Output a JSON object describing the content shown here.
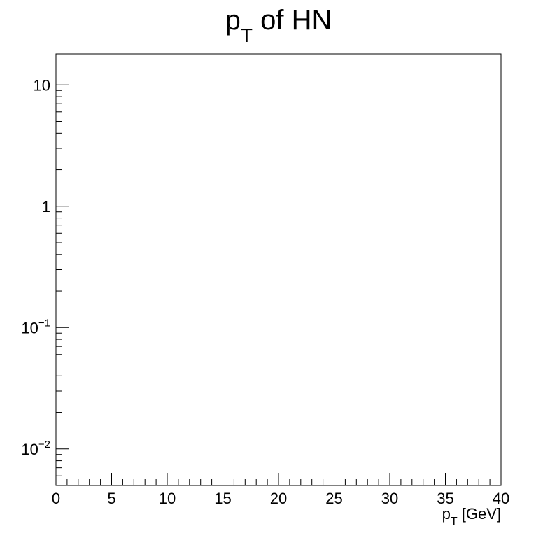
{
  "chart_data": {
    "type": "bar",
    "title": {
      "main": "p",
      "sub": "T",
      "rest": " of HN"
    },
    "xlabel": {
      "main": "p",
      "sub": "T",
      "rest": " [GeV]"
    },
    "ylabel": "",
    "xlim": [
      0,
      40
    ],
    "ylim": [
      0.005,
      18
    ],
    "yscale": "log",
    "x_ticks": [
      "0",
      "5",
      "10",
      "15",
      "20",
      "25",
      "30",
      "35",
      "40"
    ],
    "x_tick_values": [
      0,
      5,
      10,
      15,
      20,
      25,
      30,
      35,
      40
    ],
    "y_ticks": [
      {
        "value": 10,
        "base": "10",
        "exp": ""
      },
      {
        "value": 1,
        "base": "1",
        "exp": ""
      },
      {
        "value": 0.1,
        "base": "10",
        "exp": "−1"
      },
      {
        "value": 0.01,
        "base": "10",
        "exp": "−2"
      }
    ],
    "series": [],
    "grid": false,
    "legend": "none"
  }
}
